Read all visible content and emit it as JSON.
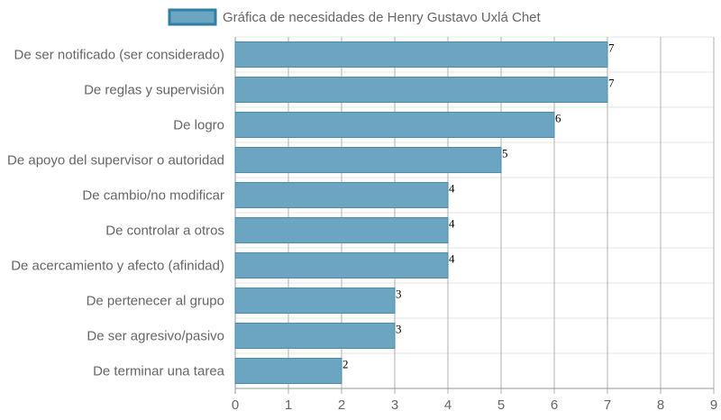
{
  "chart_data": {
    "type": "bar",
    "orientation": "horizontal",
    "categories": [
      "De ser notificado (ser considerado)",
      "De reglas y supervisión",
      "De logro",
      "De apoyo del supervisor o autoridad",
      "De cambio/no modificar",
      "De controlar a otros",
      "De acercamiento y afecto (afinidad)",
      "De pertenecer al grupo",
      "De ser agresivo/pasivo",
      "De terminar una tarea"
    ],
    "series": [
      {
        "name": "Gráfica de necesidades de Henry Gustavo Uxlá Chet",
        "values": [
          7,
          7,
          6,
          5,
          4,
          4,
          4,
          3,
          3,
          2
        ]
      }
    ],
    "xlim": [
      0,
      9
    ],
    "x_ticks": [
      "0",
      "1",
      "2",
      "3",
      "4",
      "5",
      "6",
      "7",
      "8",
      "9"
    ],
    "grid": true,
    "legend": "top-center",
    "data_labels": true,
    "colors": {
      "bar_fill": "#6ba5c2",
      "bar_border": "#4f8aa8",
      "legend_border": "#2f7ea3",
      "grid": "#e6e6e6",
      "grid_major": "#b0b0b0",
      "text": "#666666"
    }
  }
}
